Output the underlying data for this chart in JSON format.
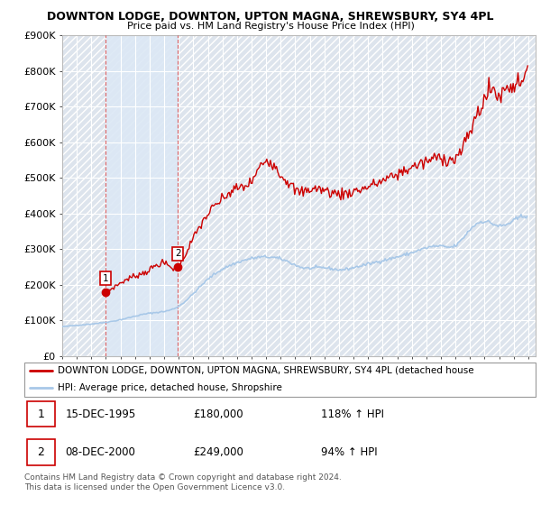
{
  "title1": "DOWNTON LODGE, DOWNTON, UPTON MAGNA, SHREWSBURY, SY4 4PL",
  "title2": "Price paid vs. HM Land Registry's House Price Index (HPI)",
  "ylim": [
    0,
    900000
  ],
  "yticks": [
    0,
    100000,
    200000,
    300000,
    400000,
    500000,
    600000,
    700000,
    800000,
    900000
  ],
  "ytick_labels": [
    "£0",
    "£100K",
    "£200K",
    "£300K",
    "£400K",
    "£500K",
    "£600K",
    "£700K",
    "£800K",
    "£900K"
  ],
  "xmin": 1993.0,
  "xmax": 2025.5,
  "sale1_date": 1995.96,
  "sale1_price": 180000,
  "sale1_label": "1",
  "sale2_date": 2000.94,
  "sale2_price": 249000,
  "sale2_label": "2",
  "legend_line1": "DOWNTON LODGE, DOWNTON, UPTON MAGNA, SHREWSBURY, SY4 4PL (detached house",
  "legend_line2": "HPI: Average price, detached house, Shropshire",
  "footnote": "Contains HM Land Registry data © Crown copyright and database right 2024.\nThis data is licensed under the Open Government Licence v3.0.",
  "hpi_color": "#a8c8e8",
  "price_color": "#cc0000",
  "bg_hatch_color": "#dde4ed",
  "between_sales_color": "#dce8f5",
  "grid_color": "#ffffff",
  "ann1_date": "15-DEC-1995",
  "ann1_price": "£180,000",
  "ann1_pct": "118% ↑ HPI",
  "ann2_date": "08-DEC-2000",
  "ann2_price": "£249,000",
  "ann2_pct": "94% ↑ HPI"
}
